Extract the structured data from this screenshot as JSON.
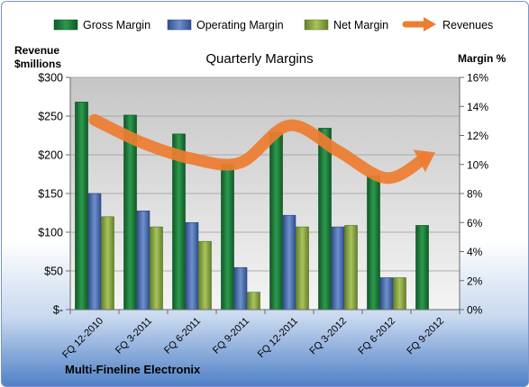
{
  "chart_data": {
    "type": "bar",
    "title": "Quarterly Margins",
    "company": "Multi-Fineline Electronix",
    "ylabel_left": [
      "Revenue",
      "$millions"
    ],
    "ylabel_right": "Margin %",
    "categories": [
      "FQ 12-2010",
      "FQ 3-2011",
      "FQ 6-2011",
      "FQ 9-2011",
      "FQ 12-2011",
      "FQ 3-2012",
      "FQ 6-2012",
      "FQ 9-2012"
    ],
    "left_axis": {
      "range": [
        0,
        300
      ],
      "ticks": [
        0,
        50,
        100,
        150,
        200,
        250,
        300
      ],
      "tick_labels": [
        "$-",
        "$50",
        "$100",
        "$150",
        "$200",
        "$250",
        "$300"
      ]
    },
    "right_axis": {
      "range": [
        0,
        16
      ],
      "ticks": [
        0,
        2,
        4,
        6,
        8,
        10,
        12,
        14,
        16
      ],
      "tick_labels": [
        "0%",
        "2%",
        "4%",
        "6%",
        "8%",
        "10%",
        "12%",
        "14%",
        "16%"
      ]
    },
    "series": [
      {
        "name": "Gross Margin",
        "axis": "right",
        "color": "#1e7a3a",
        "values": [
          14.3,
          13.4,
          12.1,
          10.0,
          12.2,
          12.5,
          9.2,
          5.8
        ]
      },
      {
        "name": "Operating Margin",
        "axis": "right",
        "color": "#4a6fb0",
        "values": [
          8.0,
          6.8,
          6.0,
          2.9,
          6.5,
          5.7,
          2.2,
          null
        ]
      },
      {
        "name": "Net Margin",
        "axis": "right",
        "color": "#8aaa3c",
        "values": [
          6.4,
          5.7,
          4.7,
          1.2,
          5.7,
          5.8,
          2.2,
          null
        ]
      },
      {
        "name": "Revenues",
        "axis": "left",
        "type": "line",
        "color": "#ed7d31",
        "values": [
          245,
          215,
          195,
          190,
          238,
          205,
          170,
          203
        ]
      }
    ],
    "grid": true,
    "legend": "top"
  }
}
